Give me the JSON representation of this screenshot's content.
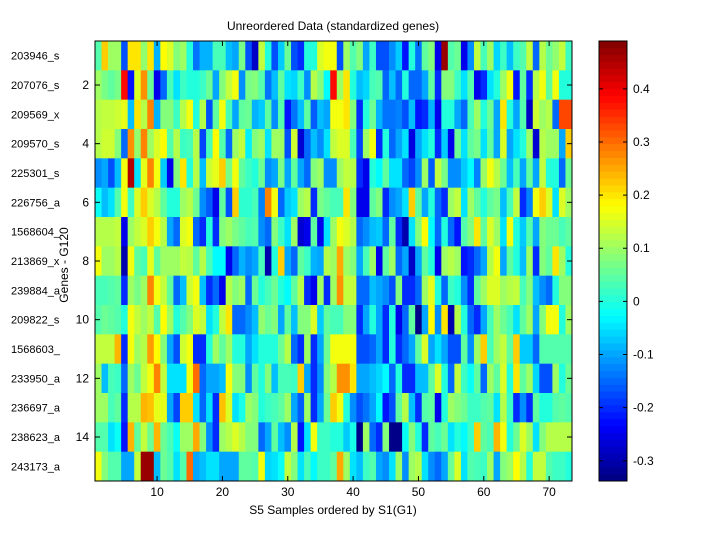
{
  "chart_data": {
    "type": "heatmap",
    "title": "Unreordered Data (standardized genes)",
    "xlabel": "S5 Samples ordered by S1(G1)",
    "ylabel": "Genes - G120",
    "row_labels": [
      "203946_s",
      "207076_s",
      "209569_x",
      "209570_s",
      "225301_s",
      "226756_a",
      "1568604_",
      "213869_x",
      "239884_a",
      "209822_s",
      "1568603_",
      "233950_a",
      "236697_a",
      "238623_a",
      "243173_a"
    ],
    "x_ticks": [
      10,
      20,
      30,
      40,
      50,
      60,
      70
    ],
    "y_ticks": [
      2,
      4,
      6,
      8,
      10,
      12,
      14
    ],
    "xlim": [
      0.5,
      73.5
    ],
    "ylim": [
      0.5,
      15.5
    ],
    "n_cols": 73,
    "colormap": "jet",
    "clim": [
      -0.338,
      0.49
    ],
    "colorbar_ticks": [
      -0.3,
      -0.2,
      -0.1,
      0,
      0.1,
      0.2,
      0.3,
      0.4
    ],
    "values": [
      [
        0.04,
        0.22,
        0.1,
        0.1,
        -0.17,
        0.2,
        0.2,
        0.09,
        0.2,
        -0.09,
        0.18,
        0.15,
        0.08,
        0.1,
        0,
        -0.14,
        -0.09,
        -0.09,
        0.03,
        0.03,
        -0.08,
        -0.1,
        0.07,
        -0.17,
        -0.28,
        0.13,
        0,
        -0.17,
        -0.07,
        0.06,
        -0.17,
        -0.2,
        0,
        0,
        0.15,
        0.17,
        0.17,
        -0.17,
        0.1,
        0.04,
        0.08,
        -0.1,
        0.02,
        -0.17,
        -0.17,
        -0.12,
        -0.07,
        -0.22,
        0,
        -0.14,
        0.05,
        0.08,
        -0.25,
        0.47,
        0.04,
        0.06,
        -0.25,
        -0.12,
        0.13,
        0.03,
        0.1,
        -0.06,
        0.02,
        -0.08,
        0.02,
        0.04,
        0.13,
        -0.15,
        0.12,
        0.06,
        0.09,
        0.13,
        0.02
      ],
      [
        0.1,
        0.07,
        0.05,
        0.07,
        0.38,
        -0.22,
        0.15,
        0.27,
        0.06,
        -0.25,
        -0.15,
        0.03,
        -0.05,
        0.02,
        0,
        0,
        0.02,
        0.06,
        -0.1,
        0.08,
        0.13,
        0.17,
        -0.12,
        0.07,
        0.08,
        0.04,
        -0.14,
        -0.08,
        0.05,
        -0.05,
        -0.06,
        0.02,
        -0.12,
        0.12,
        0.08,
        -0.03,
        0.38,
        0.1,
        0.2,
        0,
        -0.08,
        -0.06,
        0.03,
        0.04,
        -0.15,
        -0.08,
        -0.15,
        0,
        -0.15,
        -0.15,
        -0.1,
        0.05,
        -0.2,
        0.08,
        0.08,
        0.02,
        -0.05,
        0.04,
        -0.25,
        -0.2,
        -0.05,
        0,
        0.1,
        0.17,
        -0.22,
        0.05,
        -0.2,
        0.12,
        0.17,
        0.05,
        0.17,
        0,
        0
      ],
      [
        0.12,
        0.13,
        0.13,
        0.14,
        0.16,
        -0.08,
        0.2,
        0.12,
        0.28,
        -0.09,
        0.08,
        0.08,
        0.02,
        0.12,
        0.17,
        0,
        0.12,
        -0.17,
        0.05,
        0.17,
        0.03,
        -0.1,
        0.05,
        0.06,
        -0.09,
        -0.07,
        0.05,
        -0.12,
        0.04,
        -0.22,
        -0.14,
        -0.08,
        0.05,
        -0.16,
        -0.08,
        -0.1,
        0.17,
        0.17,
        0.2,
        0.08,
        -0.2,
        0,
        0.06,
        -0.09,
        -0.14,
        -0.14,
        -0.13,
        -0.17,
        -0.08,
        -0.22,
        -0.2,
        -0.09,
        -0.25,
        0,
        0,
        -0.1,
        -0.15,
        0.03,
        0.1,
        0,
        0.06,
        -0.1,
        0.2,
        0,
        -0.1,
        0.04,
        -0.28,
        0.14,
        0.1,
        0.12,
        -0.15,
        0.33,
        0.33
      ],
      [
        0.12,
        0.14,
        0.14,
        0.08,
        -0.15,
        0.27,
        0.09,
        0.28,
        0.1,
        0.15,
        0.18,
        0.04,
        0.12,
        0.02,
        0.03,
        0.12,
        -0.18,
        0.03,
        0.18,
        0.04,
        -0.15,
        0.1,
        0.13,
        -0.04,
        0.08,
        0.1,
        -0.05,
        0.1,
        0.1,
        -0.17,
        0.14,
        -0.27,
        -0.15,
        -0.08,
        -0.12,
        -0.05,
        0.13,
        0.15,
        0.15,
        0.03,
        -0.18,
        0.1,
        0.17,
        -0.2,
        0,
        -0.15,
        -0.1,
        -0.05,
        -0.26,
        -0.1,
        -0.05,
        0,
        -0.2,
        -0.07,
        -0.25,
        0.06,
        -0.05,
        0.05,
        0.07,
        -0.05,
        0.05,
        -0.1,
        0.15,
        -0.1,
        -0.05,
        0,
        0.1,
        -0.27,
        0.12,
        0.1,
        0.1,
        -0.1,
        0.22
      ],
      [
        -0.12,
        -0.1,
        -0.17,
        -0.08,
        0.17,
        0.45,
        -0.05,
        0.16,
        0.28,
        0.17,
        -0.07,
        -0.25,
        0.08,
        0.2,
        0,
        0.12,
        -0.08,
        0.14,
        0.16,
        0.22,
        0.07,
        0.17,
        0.05,
        0.02,
        0,
        0.06,
        -0.12,
        -0.1,
        0.07,
        -0.1,
        0.05,
        -0.1,
        -0.15,
        0.08,
        0.1,
        -0.12,
        -0.12,
        0.1,
        0.13,
        0.12,
        -0.2,
        -0.25,
        0,
        -0.03,
        0.05,
        -0.05,
        -0.05,
        -0.15,
        -0.18,
        -0.12,
        0.1,
        -0.16,
        0.13,
        0.07,
        -0.12,
        -0.12,
        -0.07,
        -0.03,
        -0.13,
        0.1,
        0.17,
        0.12,
        0.06,
        -0.08,
        0.03,
        -0.1,
        0.05,
        -0.1,
        0.13,
        0,
        0,
        -0.15,
        0.06
      ],
      [
        -0.02,
        -0.08,
        -0.05,
        0.04,
        0.17,
        0.02,
        0.15,
        0.22,
        0.15,
        0.12,
        0.05,
        0,
        0,
        0.1,
        0.12,
        0.06,
        -0.12,
        -0.16,
        -0.25,
        0.05,
        -0.17,
        0.22,
        0.01,
        0.01,
        0.03,
        -0.13,
        0.28,
        0.17,
        -0.15,
        -0.07,
        -0.05,
        0.1,
        0.12,
        -0.2,
        0.07,
        0.05,
        0.03,
        0.03,
        0.2,
        0.08,
        -0.25,
        -0.25,
        0.05,
        0.08,
        -0.2,
        -0.12,
        -0.1,
        -0.05,
        0.22,
        0.05,
        -0.1,
        0,
        -0.15,
        -0.2,
        0.1,
        0.13,
        -0.05,
        0.1,
        0.05,
        0,
        0.05,
        0.07,
        -0.08,
        0.03,
        0.13,
        -0.2,
        -0.13,
        0.17,
        0.22,
        0.15,
        -0.05,
        0.15,
        0.1
      ],
      [
        0.12,
        0.12,
        0.12,
        0.13,
        -0.25,
        0.1,
        0.13,
        0.15,
        0.22,
        0.17,
        0.12,
        -0.1,
        -0.15,
        0.15,
        0.17,
        -0.15,
        -0.2,
        0,
        -0.2,
        0.08,
        0.1,
        0.07,
        0.05,
        0.03,
        0.04,
        -0.12,
        -0.15,
        0.08,
        0.02,
        -0.05,
        0.1,
        -0.27,
        -0.25,
        0.05,
        -0.25,
        -0.05,
        0.1,
        0.17,
        0.15,
        0.12,
        -0.15,
        -0.12,
        -0.08,
        -0.07,
        -0.15,
        0.05,
        -0.2,
        -0.3,
        -0.05,
        0.08,
        0.18,
        -0.03,
        -0.15,
        0,
        -0.15,
        -0.22,
        0.04,
        0.08,
        0.2,
        0.05,
        0.15,
        0.1,
        -0.05,
        0.17,
        0,
        -0.07,
        0.04,
        -0.1,
        0.08,
        0.06,
        0.06,
        0.03,
        0.05
      ],
      [
        0.17,
        0.1,
        0.1,
        0.12,
        -0.3,
        0.17,
        0.05,
        0.03,
        0.16,
        0.05,
        0.1,
        0.1,
        0.1,
        0.13,
        0.12,
        0.05,
        0.12,
        0.03,
        -0.03,
        -0.03,
        -0.25,
        -0.15,
        -0.09,
        -0.12,
        -0.1,
        0.03,
        -0.3,
        0,
        0.22,
        -0.1,
        -0.15,
        0.05,
        0.02,
        -0.09,
        -0.1,
        0.12,
        0.1,
        0.25,
        0.1,
        0.08,
        -0.1,
        0.03,
        0.1,
        -0.25,
        0.05,
        0.1,
        -0.15,
        -0.1,
        -0.28,
        -0.1,
        0.05,
        0,
        -0.25,
        0.1,
        0.12,
        0.1,
        -0.22,
        -0.2,
        -0.15,
        -0.1,
        0.12,
        0.17,
        -0.1,
        0.05,
        0,
        -0.08,
        0.1,
        -0.2,
        0.08,
        0.05,
        0.2,
        0.1,
        0
      ],
      [
        0.03,
        0.03,
        0.04,
        0.05,
        -0.2,
        0.1,
        0.07,
        0.1,
        0.28,
        0.17,
        0.13,
        0.05,
        -0.15,
        -0.08,
        0.14,
        0.17,
        -0.08,
        -0.2,
        -0.15,
        -0.25,
        0.12,
        0.08,
        0.1,
        -0.15,
        0.06,
        0,
        0.03,
        0.06,
        0,
        -0.03,
        0.05,
        0.12,
        -0.2,
        -0.25,
        0.1,
        -0.2,
        0.1,
        0.27,
        0.13,
        0.13,
        -0.15,
        -0.15,
        -0.08,
        -0.1,
        -0.12,
        -0.17,
        0.08,
        -0.2,
        -0.2,
        -0.15,
        0.1,
        0.16,
        0,
        -0.15,
        0.02,
        0,
        -0.12,
        -0.2,
        0.05,
        0.1,
        0.15,
        0.15,
        0.1,
        0.12,
        0.13,
        0.03,
        0.08,
        -0.08,
        -0.12,
        -0.15,
        0,
        0.08,
        0.08
      ],
      [
        0.04,
        0.06,
        0.05,
        0.04,
        0,
        0.17,
        0.13,
        0.1,
        0.13,
        0.04,
        0.18,
        0.1,
        0,
        0.04,
        0.08,
        0.15,
        0.13,
        -0.05,
        0,
        0.13,
        0.2,
        -0.15,
        -0.15,
        -0.12,
        -0.08,
        0.09,
        0.06,
        0.08,
        -0.1,
        0.05,
        -0.08,
        0.08,
        0.08,
        0.15,
        -0.07,
        0.05,
        0.03,
        0.03,
        0.08,
        0.08,
        -0.2,
        -0.1,
        0,
        -0.1,
        -0.2,
        0,
        -0.25,
        -0.15,
        0.05,
        -0.33,
        -0.1,
        0.18,
        -0.12,
        0.2,
        -0.3,
        0.12,
        0,
        -0.15,
        -0.2,
        -0.1,
        0.03,
        0.1,
        0.06,
        0.03,
        -0.05,
        0.05,
        0.1,
        -0.1,
        0.08,
        0.17,
        0.17,
        0,
        0.1
      ],
      [
        0.13,
        0.13,
        0.13,
        0.24,
        -0.2,
        0.17,
        0.1,
        0.12,
        0.26,
        0.18,
        0.08,
        -0.1,
        -0.17,
        0.14,
        0.17,
        -0.2,
        -0.2,
        0,
        0.1,
        0.05,
        0.1,
        0,
        0,
        -0.1,
        -0.05,
        0,
        0,
        0,
        0.06,
        0.12,
        -0.15,
        -0.2,
        0.1,
        -0.2,
        -0.1,
        0.06,
        0.17,
        0.17,
        0.17,
        0.17,
        -0.17,
        -0.17,
        -0.15,
        -0.1,
        -0.2,
        0,
        -0.2,
        -0.15,
        -0.1,
        0.05,
        0.15,
        -0.1,
        -0.05,
        -0.1,
        -0.17,
        -0.17,
        0.05,
        -0.12,
        0.1,
        0.22,
        0.03,
        0.1,
        0.13,
        0.05,
        0.22,
        -0.07,
        -0.07,
        -0.15,
        0.04,
        0.04,
        0.04,
        0.04,
        0.04
      ],
      [
        0.1,
        -0.08,
        0.03,
        0.02,
        -0.15,
        0.1,
        0.06,
        0.13,
        0.17,
        0.28,
        0.13,
        -0.05,
        -0.05,
        -0.05,
        0.17,
        0.3,
        -0.15,
        -0.1,
        -0.1,
        -0.08,
        0.17,
        0.08,
        0.08,
        -0.12,
        0.05,
        0,
        0.08,
        -0.08,
        0.03,
        0.03,
        0.02,
        0.22,
        -0.1,
        -0.2,
        -0.12,
        0.08,
        0.12,
        0.27,
        0.27,
        0.2,
        -0.1,
        -0.1,
        -0.08,
        -0.06,
        -0.03,
        -0.15,
        0,
        -0.2,
        -0.2,
        -0.08,
        -0.08,
        0.05,
        0.15,
        0,
        -0.15,
        0.13,
        0.02,
        -0.02,
        0.05,
        -0.15,
        0.1,
        0.05,
        0.15,
        0,
        0.2,
        0.05,
        0.1,
        -0.06,
        -0.17,
        -0.17,
        0.1,
        0,
        0.06
      ],
      [
        0.1,
        0.1,
        0.03,
        0.05,
        -0.2,
        0.12,
        0.12,
        0.24,
        0.23,
        0.16,
        0.16,
        -0.1,
        -0.18,
        0.22,
        0.22,
        -0.05,
        -0.15,
        -0.05,
        -0.2,
        0.23,
        0.15,
        -0.05,
        -0.01,
        0.1,
        0.08,
        0,
        0.02,
        0.03,
        0.05,
        0.1,
        -0.1,
        -0.16,
        0.1,
        -0.2,
        -0.1,
        0.06,
        0.22,
        0.17,
        0,
        -0.12,
        -0.17,
        -0.14,
        -0.1,
        -0.03,
        -0.22,
        -0.17,
        0.05,
        0.12,
        -0.08,
        -0.2,
        0.04,
        0.05,
        -0.25,
        0,
        0.1,
        0.08,
        0.06,
        0.02,
        0.02,
        0.04,
        0.05,
        -0.05,
        0.12,
        0.02,
        -0.2,
        -0.12,
        -0.2,
        0.05,
        0,
        0,
        0.04,
        0.05,
        0.04
      ],
      [
        0.04,
        0.04,
        -0.05,
        -0.02,
        -0.22,
        0.24,
        0.05,
        0.13,
        0.06,
        0.24,
        0.06,
        0.03,
        -0.02,
        0.1,
        0.1,
        0.25,
        0.08,
        -0.12,
        -0.2,
        0.1,
        0.12,
        0.15,
        0.12,
        0.08,
        0.08,
        -0.15,
        -0.1,
        0.05,
        -0.08,
        -0.12,
        0.12,
        -0.22,
        -0.05,
        0.17,
        0.02,
        0.02,
        0,
        0,
        -0.07,
        -0.01,
        -0.33,
        0.1,
        -0.15,
        -0.2,
        0.08,
        -0.33,
        -0.33,
        -0.02,
        0.08,
        0,
        -0.2,
        0.05,
        0.03,
        0.06,
        -0.05,
        0,
        -0.03,
        0.02,
        0.22,
        0.05,
        0.03,
        0.24,
        0.17,
        0,
        0.06,
        0.15,
        0.1,
        -0.05,
        0.08,
        0.12,
        0.12,
        0.12,
        0.12
      ],
      [
        0.17,
        0.08,
        0.04,
        0.04,
        -0.1,
        -0.1,
        0.13,
        0.47,
        0.47,
        -0.08,
        0.06,
        0.04,
        -0.05,
        0.04,
        0.3,
        -0.1,
        -0.08,
        -0.05,
        -0.05,
        -0.1,
        -0.1,
        -0.1,
        0.05,
        0.05,
        0.04,
        0.17,
        -0.06,
        -0.05,
        -0.02,
        0.13,
        0.08,
        -0.05,
        0.03,
        -0.03,
        0.02,
        0.02,
        0.05,
        0.25,
        0.1,
        -0.05,
        -0.08,
        0.02,
        0.04,
        -0.1,
        -0.12,
        -0.05,
        0.1,
        -0.12,
        0.1,
        0.12,
        -0.05,
        -0.12,
        -0.15,
        -0.1,
        0.06,
        0.15,
        -0.05,
        0.04,
        0.03,
        0.02,
        0.1,
        -0.1,
        0.08,
        0.1,
        0.18,
        0.12,
        0,
        0.13,
        0.13,
        0.04,
        0.02,
        0.02,
        0
      ]
    ]
  }
}
